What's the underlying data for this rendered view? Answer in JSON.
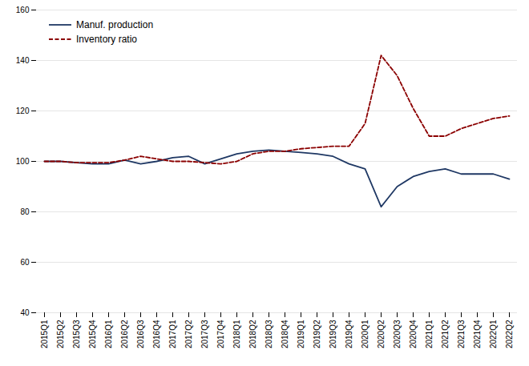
{
  "chart_data": {
    "type": "line",
    "categories": [
      "2015Q1",
      "2015Q2",
      "2015Q3",
      "2015Q4",
      "2016Q1",
      "2016Q2",
      "2016Q3",
      "2016Q4",
      "2017Q1",
      "2017Q2",
      "2017Q3",
      "2017Q4",
      "2018Q1",
      "2018Q2",
      "2018Q3",
      "2018Q4",
      "2019Q1",
      "2019Q2",
      "2019Q3",
      "2019Q4",
      "2020Q1",
      "2020Q2",
      "2020Q3",
      "2020Q4",
      "2021Q1",
      "2021Q2",
      "2021Q3",
      "2021Q4",
      "2022Q1",
      "2022Q2"
    ],
    "series": [
      {
        "name": "Manuf. production",
        "color": "#1f3864",
        "line_style": "solid",
        "values": [
          100,
          100,
          99.5,
          99,
          99,
          100.5,
          99,
          100,
          101.5,
          102,
          99,
          101,
          103,
          104,
          104.5,
          104,
          103.5,
          103,
          102,
          99,
          97,
          82,
          90,
          94,
          96,
          97,
          95,
          95,
          95,
          93
        ]
      },
      {
        "name": "Inventory ratio",
        "color": "#8b0000",
        "line_style": "dashed",
        "values": [
          100,
          100,
          99.5,
          99.5,
          99.5,
          100.5,
          102,
          101,
          100,
          100,
          99.5,
          99,
          100,
          103,
          104,
          104,
          105,
          105.5,
          106,
          106,
          115,
          142,
          134,
          121,
          110,
          110,
          113,
          115,
          117,
          118
        ]
      }
    ],
    "ylim": [
      40,
      160
    ],
    "yticks": [
      40,
      60,
      80,
      100,
      120,
      140,
      160
    ],
    "grid": true,
    "legend": "upper left"
  }
}
